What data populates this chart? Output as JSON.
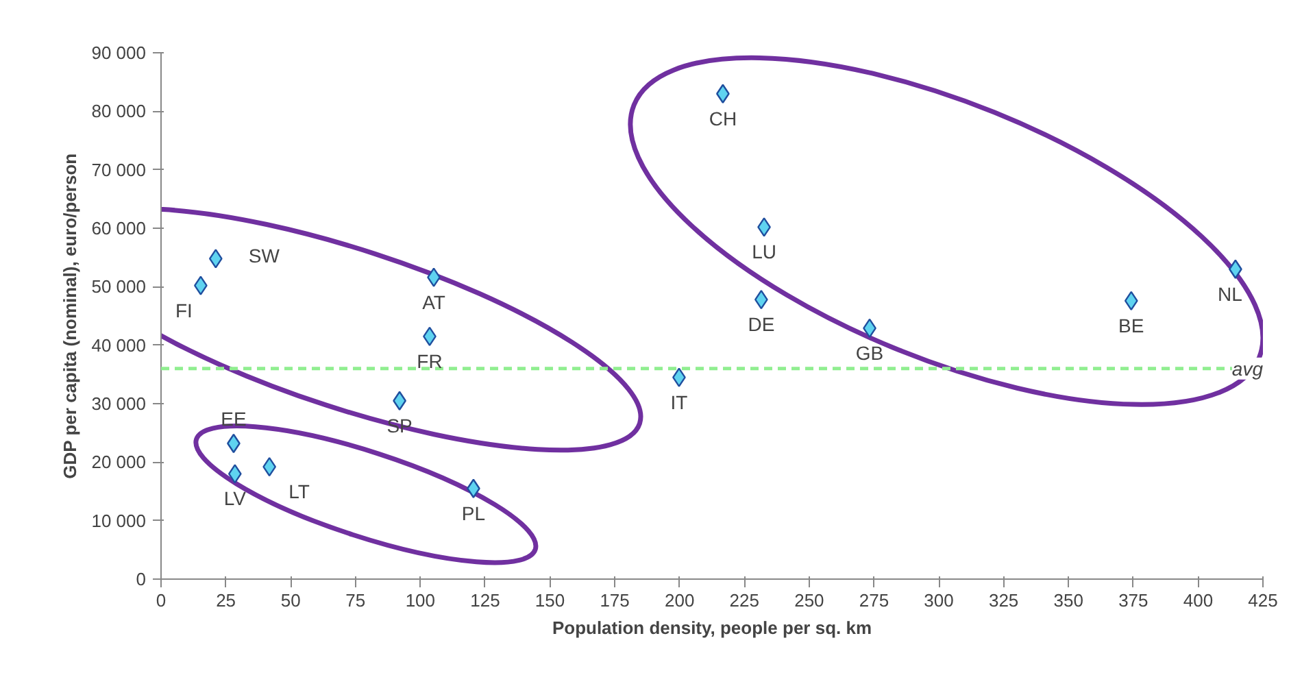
{
  "chart_data": {
    "type": "scatter",
    "xlabel": "Population density, people per sq. km",
    "ylabel": "GDP per capita (nominal), euro/person",
    "x": [
      216.7,
      232.6,
      231.5,
      273.3,
      374.2,
      414.4,
      199.8,
      21.1,
      15.3,
      105.2,
      103.6,
      92,
      28,
      28.5,
      41.8,
      120.5
    ],
    "series": [
      {
        "color": "#5fd3f0",
        "values": [
          83000,
          60200,
          47800,
          42900,
          47600,
          53000,
          34500,
          54800,
          50200,
          51600,
          41500,
          30500,
          23200,
          18000,
          19200,
          15500
        ]
      }
    ],
    "annotations": [
      {
        "text": "CH",
        "x": 216.7,
        "y": 83000
      },
      {
        "text": "LU",
        "x": 232.6,
        "y": 60200
      },
      {
        "text": "DE",
        "x": 231.5,
        "y": 47800
      },
      {
        "text": "GB",
        "x": 273.3,
        "y": 42900
      },
      {
        "text": "BE",
        "x": 374.2,
        "y": 47600
      },
      {
        "text": "NL",
        "x": 414.4,
        "y": 53000
      },
      {
        "text": "IT",
        "x": 199.8,
        "y": 34500
      },
      {
        "text": "SW",
        "x": 21.1,
        "y": 54800
      },
      {
        "text": "FI",
        "x": 15.3,
        "y": 50200
      },
      {
        "text": "AT",
        "x": 105.2,
        "y": 51600
      },
      {
        "text": "FR",
        "x": 103.6,
        "y": 41500
      },
      {
        "text": "SP",
        "x": 92,
        "y": 30500
      },
      {
        "text": "EE",
        "x": 28,
        "y": 23200
      },
      {
        "text": "LV",
        "x": 28.5,
        "y": 18000
      },
      {
        "text": "LT",
        "x": 41.8,
        "y": 19200
      },
      {
        "text": "PL",
        "x": 120.5,
        "y": 15500
      }
    ],
    "ref_lines": [
      {
        "axis": "y",
        "value": 36000,
        "label": "avg",
        "color": "#90ee90",
        "line_style": "dashed"
      }
    ],
    "xlim": [
      0,
      425
    ],
    "xticks": [
      0,
      25,
      50,
      75,
      100,
      125,
      150,
      175,
      200,
      225,
      250,
      275,
      300,
      325,
      350,
      375,
      400,
      425
    ],
    "ylim": [
      0,
      90000
    ],
    "yticks": [
      {
        "value": 0,
        "label": "0"
      },
      {
        "value": 10000,
        "label": "10 000"
      },
      {
        "value": 20000,
        "label": "20 000"
      },
      {
        "value": 30000,
        "label": "30 000"
      },
      {
        "value": 40000,
        "label": "40 000"
      },
      {
        "value": 50000,
        "label": "50 000"
      },
      {
        "value": 60000,
        "label": "60 000"
      },
      {
        "value": 70000,
        "label": "70 000"
      },
      {
        "value": 80000,
        "label": "80 000"
      },
      {
        "value": 90000,
        "label": "90 000"
      }
    ],
    "marker": "diamond",
    "grid": false
  }
}
